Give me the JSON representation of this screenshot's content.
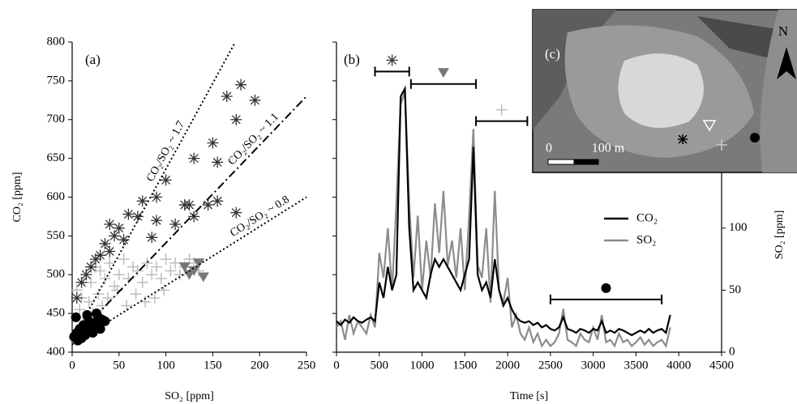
{
  "chart_data": [
    {
      "type": "scatter",
      "panel_label": "(a)",
      "x_label": "SO₂ [ppm]",
      "y_label": "CO₂ [ppm]",
      "xlim": [
        0,
        250
      ],
      "xticks": [
        0,
        50,
        100,
        150,
        200,
        250
      ],
      "ylim": [
        400,
        800
      ],
      "yticks": [
        400,
        450,
        500,
        550,
        600,
        650,
        700,
        750,
        800
      ],
      "series": [
        {
          "marker": "plus",
          "color": "#bdbdbd",
          "x": [
            5,
            10,
            15,
            20,
            25,
            30,
            35,
            40,
            45,
            50,
            55,
            60,
            65,
            70,
            75,
            80,
            85,
            90,
            95,
            100,
            105,
            110,
            115,
            120,
            125,
            130,
            135,
            8,
            18,
            28,
            38,
            48,
            58,
            68,
            78,
            88,
            98,
            12,
            22,
            32
          ],
          "y": [
            480,
            470,
            500,
            490,
            510,
            505,
            495,
            515,
            485,
            500,
            520,
            495,
            510,
            505,
            490,
            515,
            500,
            510,
            495,
            520,
            505,
            515,
            500,
            510,
            520,
            515,
            505,
            455,
            465,
            475,
            470,
            480,
            460,
            475,
            465,
            470,
            480,
            445,
            450,
            460
          ]
        },
        {
          "marker": "asterisk",
          "color": "#333333",
          "x": [
            180,
            165,
            195,
            175,
            150,
            130,
            155,
            100,
            90,
            75,
            120,
            125,
            155,
            145,
            175,
            130,
            60,
            70,
            90,
            110,
            50,
            40,
            45,
            55,
            85,
            35,
            40,
            30,
            25,
            20,
            15,
            10,
            5
          ],
          "y": [
            745,
            730,
            725,
            700,
            670,
            650,
            645,
            622,
            600,
            595,
            590,
            590,
            595,
            590,
            580,
            575,
            578,
            575,
            570,
            565,
            560,
            565,
            550,
            545,
            548,
            540,
            530,
            525,
            520,
            510,
            500,
            490,
            470
          ]
        },
        {
          "marker": "triangle",
          "color": "#777777",
          "x": [
            120,
            125,
            130,
            135,
            140
          ],
          "y": [
            510,
            500,
            505,
            515,
            497
          ]
        },
        {
          "marker": "circle",
          "color": "#000000",
          "x": [
            2,
            5,
            8,
            10,
            12,
            15,
            18,
            20,
            22,
            25,
            28,
            30,
            32,
            35,
            4,
            14,
            24,
            6,
            16,
            26
          ],
          "y": [
            420,
            425,
            430,
            418,
            435,
            428,
            440,
            432,
            425,
            438,
            445,
            430,
            442,
            440,
            445,
            422,
            430,
            415,
            448,
            450
          ]
        }
      ],
      "ratio_lines": [
        {
          "label": "CO₂/SO₂ ~ 1.7",
          "style": "dotted",
          "x": [
            0,
            174
          ],
          "y": [
            415,
            800
          ]
        },
        {
          "label": "CO₂/SO₂ ~ 1.1",
          "style": "dashdot",
          "x": [
            0,
            250
          ],
          "y": [
            415,
            730
          ]
        },
        {
          "label": "CO₂/SO₂ ~ 0.8",
          "style": "dotted",
          "x": [
            0,
            250
          ],
          "y": [
            410,
            600
          ]
        }
      ]
    },
    {
      "type": "line",
      "panel_label": "(b)",
      "x_label": "Time [s]",
      "y2_label": "SO₂ [ppm]",
      "xlim": [
        0,
        4500
      ],
      "xticks": [
        0,
        500,
        1000,
        1500,
        2000,
        2500,
        3000,
        3500,
        4000,
        4500
      ],
      "ylim": [
        400,
        800
      ],
      "yticks": [
        400,
        450,
        500,
        550,
        600,
        650,
        700,
        750,
        800
      ],
      "y2lim": [
        0,
        250
      ],
      "y2ticks": [
        0,
        50,
        100
      ],
      "x": [
        0,
        50,
        100,
        150,
        200,
        250,
        300,
        350,
        400,
        450,
        500,
        550,
        600,
        650,
        700,
        750,
        800,
        850,
        900,
        950,
        1000,
        1050,
        1100,
        1150,
        1200,
        1250,
        1300,
        1350,
        1400,
        1450,
        1500,
        1550,
        1600,
        1650,
        1700,
        1750,
        1800,
        1850,
        1900,
        1950,
        2000,
        2050,
        2100,
        2150,
        2200,
        2250,
        2300,
        2350,
        2400,
        2450,
        2500,
        2550,
        2600,
        2650,
        2700,
        2750,
        2800,
        2850,
        2900,
        2950,
        3000,
        3050,
        3100,
        3150,
        3200,
        3250,
        3300,
        3350,
        3400,
        3450,
        3500,
        3550,
        3600,
        3650,
        3700,
        3750,
        3800,
        3850,
        3900
      ],
      "series": [
        {
          "name": "SO₂",
          "color": "#8c8c8c",
          "axis": "y2",
          "values": [
            20,
            25,
            10,
            30,
            15,
            25,
            20,
            15,
            30,
            20,
            80,
            60,
            100,
            50,
            120,
            200,
            210,
            120,
            60,
            110,
            50,
            90,
            60,
            120,
            80,
            130,
            70,
            90,
            60,
            100,
            50,
            110,
            180,
            70,
            60,
            100,
            40,
            130,
            50,
            40,
            60,
            20,
            30,
            15,
            10,
            20,
            8,
            15,
            5,
            10,
            5,
            8,
            15,
            35,
            10,
            8,
            5,
            15,
            10,
            8,
            20,
            10,
            30,
            8,
            10,
            5,
            15,
            8,
            10,
            5,
            8,
            12,
            6,
            10,
            5,
            8,
            10,
            5,
            20
          ]
        },
        {
          "name": "CO₂",
          "color": "#000000",
          "values": [
            440,
            435,
            442,
            438,
            445,
            440,
            438,
            442,
            445,
            440,
            490,
            470,
            510,
            480,
            500,
            730,
            740,
            560,
            480,
            490,
            480,
            470,
            500,
            520,
            510,
            520,
            510,
            500,
            490,
            480,
            500,
            520,
            665,
            500,
            480,
            490,
            470,
            520,
            480,
            460,
            470,
            455,
            445,
            440,
            438,
            440,
            435,
            438,
            432,
            435,
            430,
            428,
            432,
            445,
            430,
            428,
            425,
            430,
            428,
            425,
            430,
            428,
            440,
            425,
            428,
            425,
            430,
            428,
            425,
            422,
            425,
            428,
            425,
            430,
            425,
            428,
            430,
            425,
            448
          ]
        }
      ],
      "intervals": [
        {
          "marker": "asterisk",
          "color": "#333333",
          "x": [
            450,
            850
          ],
          "y": 762
        },
        {
          "marker": "triangle",
          "color": "#777777",
          "x": [
            870,
            1630
          ],
          "y": 746
        },
        {
          "marker": "plus",
          "color": "#bdbdbd",
          "x": [
            1630,
            2230
          ],
          "y": 698
        },
        {
          "marker": "circle",
          "color": "#000000",
          "x": [
            2500,
            3800
          ],
          "y": 468
        }
      ]
    }
  ],
  "map_inset": {
    "label": "(c)",
    "north": "N",
    "scale_start": "0",
    "scale_end": "100 m"
  }
}
